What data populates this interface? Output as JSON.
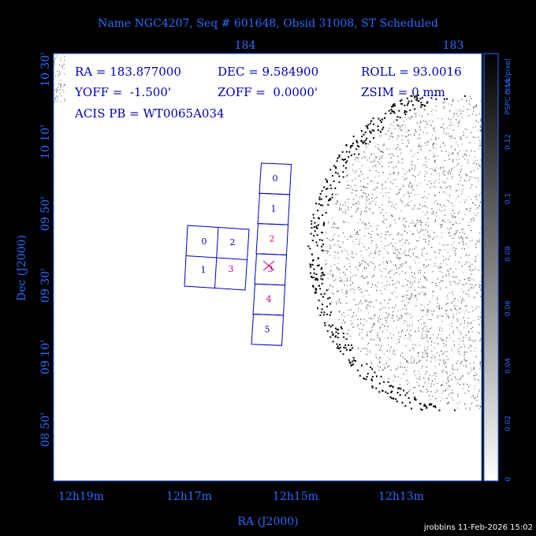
{
  "title": "Name NGC4207, Seq # 601648, Obsid 31008, ST Scheduled",
  "axes": {
    "x_label": "RA (J2000)",
    "y_label": "Dec (J2000)",
    "top_ticks": [
      184,
      183
    ],
    "bottom_ticks": [
      "12h19m",
      "12h17m",
      "12h15m",
      "12h13m"
    ],
    "left_ticks": [
      "10 30'",
      "10 10'",
      "09 50'",
      "09 30'",
      "09 10'",
      "08 50'"
    ],
    "colorbar_ticks": [
      0,
      0.02,
      0.04,
      0.06,
      0.08,
      0.1,
      0.12,
      0.14
    ],
    "colorbar_label": "PSPC cts/s/pixel"
  },
  "info": [
    "RA = 183.877000",
    "DEC = 9.584900",
    "ROLL = 93.0016",
    "YOFF =  -1.500'",
    "ZOFF =  0.0000'",
    "ZSIM = 0 mm",
    "ACIS PB = WT0065A034"
  ],
  "chips": {
    "i_array": [
      "0",
      "2",
      "1",
      "3"
    ],
    "s_array": [
      "0",
      "1",
      "2",
      "3",
      "4",
      "5"
    ]
  },
  "footer": "jrobbins 11-Feb-2026 15:02"
}
